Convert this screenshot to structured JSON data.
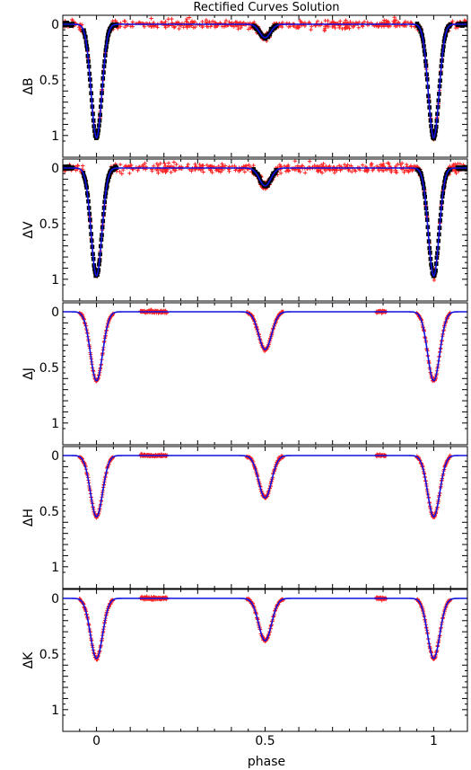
{
  "title": "Rectified Curves Solution",
  "xlabel": "phase",
  "colors": {
    "model": "#1010e0",
    "crosses": "#ff2020",
    "squares": "#000000"
  },
  "chart_data": {
    "type": "scatter",
    "title": "Rectified Curves Solution",
    "xlabel": "phase",
    "xlim": [
      -0.1,
      1.1
    ],
    "x_ticks": [
      0,
      0.5,
      1
    ],
    "x_tick_labels": [
      "0",
      "0.5",
      "1"
    ],
    "panels": [
      {
        "ylabel": "ΔB",
        "ylim": [
          0,
          1.05
        ],
        "inverted": true,
        "y_ticks": [
          0,
          0.5,
          1
        ],
        "y_tick_labels": [
          "0",
          "0.5",
          "1"
        ],
        "primary_depth": 1.02,
        "primary_width": 0.016,
        "secondary_depth": 0.12,
        "secondary_width": 0.016,
        "secondary_phase": 0.5,
        "series": [
          {
            "name": "",
            "marker": "cross",
            "scatter_sd": 0.018,
            "dense": true
          },
          {
            "name": "",
            "marker": "square",
            "coverage": "eclipses"
          },
          {
            "name": "",
            "marker": "line",
            "role": "model"
          }
        ]
      },
      {
        "ylabel": "ΔV",
        "ylim": [
          0,
          1.05
        ],
        "inverted": true,
        "y_ticks": [
          0,
          0.5,
          1
        ],
        "y_tick_labels": [
          "0",
          "0.5",
          "1"
        ],
        "primary_depth": 0.97,
        "primary_width": 0.016,
        "secondary_depth": 0.16,
        "secondary_width": 0.017,
        "secondary_phase": 0.5,
        "series": [
          {
            "name": "",
            "marker": "cross",
            "scatter_sd": 0.02,
            "dense": true
          },
          {
            "name": "",
            "marker": "square",
            "coverage": "eclipses"
          },
          {
            "name": "",
            "marker": "line",
            "role": "model"
          }
        ]
      },
      {
        "ylabel": "ΔJ",
        "ylim": [
          0,
          1.05
        ],
        "inverted": true,
        "y_ticks": [
          0,
          0.5,
          1
        ],
        "y_tick_labels": [
          "0",
          "0.5",
          "1"
        ],
        "primary_depth": 0.62,
        "primary_width": 0.018,
        "secondary_depth": 0.34,
        "secondary_width": 0.019,
        "secondary_phase": 0.5,
        "series": [
          {
            "name": "",
            "marker": "cross",
            "scatter_sd": 0.006,
            "dense": false
          },
          {
            "name": "",
            "marker": "line",
            "role": "model"
          }
        ]
      },
      {
        "ylabel": "ΔH",
        "ylim": [
          0,
          1.05
        ],
        "inverted": true,
        "y_ticks": [
          0,
          0.5,
          1
        ],
        "y_tick_labels": [
          "0",
          "0.5",
          "1"
        ],
        "primary_depth": 0.55,
        "primary_width": 0.018,
        "secondary_depth": 0.38,
        "secondary_width": 0.019,
        "secondary_phase": 0.5,
        "series": [
          {
            "name": "",
            "marker": "cross",
            "scatter_sd": 0.006,
            "dense": false
          },
          {
            "name": "",
            "marker": "line",
            "role": "model"
          }
        ]
      },
      {
        "ylabel": "ΔK",
        "ylim": [
          0,
          1.05
        ],
        "inverted": true,
        "y_ticks": [
          0,
          0.5,
          1
        ],
        "y_tick_labels": [
          "0",
          "0.5",
          "1"
        ],
        "primary_depth": 0.54,
        "primary_width": 0.018,
        "secondary_depth": 0.38,
        "secondary_width": 0.019,
        "secondary_phase": 0.5,
        "series": [
          {
            "name": "",
            "marker": "cross",
            "scatter_sd": 0.006,
            "dense": false
          },
          {
            "name": "",
            "marker": "line",
            "role": "model"
          }
        ]
      }
    ]
  }
}
